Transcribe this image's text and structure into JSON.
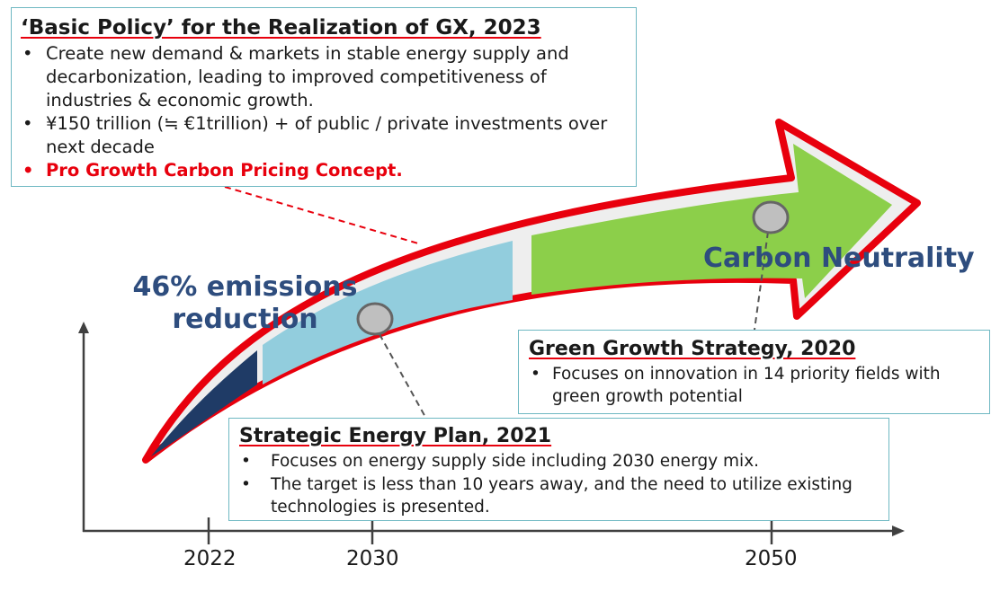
{
  "policy_box": {
    "title": "‘Basic Policy’ for the Realization of GX, 2023",
    "bullets": [
      "Create new demand & markets in stable energy supply and decarbonization, leading to improved competitiveness of industries & economic growth.",
      "¥150 trillion (≒ €1trillion) + of public / private investments over next decade"
    ],
    "highlight_bullet": "Pro Growth Carbon Pricing Concept."
  },
  "green_growth_box": {
    "title": "Green Growth Strategy, 2020",
    "bullets": [
      "Focuses on innovation in 14 priority fields with green growth potential"
    ]
  },
  "strategic_energy_box": {
    "title": "Strategic Energy Plan, 2021",
    "bullets": [
      "Focuses on energy supply side including 2030 energy mix.",
      "The target is less than 10 years away, and the need to utilize existing technologies is presented."
    ]
  },
  "labels": {
    "emissions": "46% emissions reduction",
    "carbon_neutrality": "Carbon Neutrality"
  },
  "timeline": {
    "years": [
      "2022",
      "2030",
      "2050"
    ]
  },
  "colors": {
    "arrow_outline": "#e8000d",
    "segment_dark": "#1f3b66",
    "segment_light": "#92cddd",
    "segment_green": "#8ccf4a",
    "label_text": "#2e4d7e",
    "box_border": "#6fb8c2"
  }
}
